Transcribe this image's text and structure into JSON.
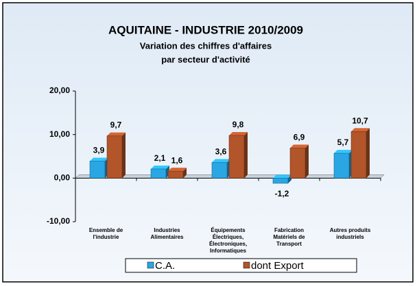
{
  "chart_data": {
    "type": "bar",
    "title": "AQUITAINE - INDUSTRIE 2010/2009",
    "subtitle": [
      "Variation des chiffres d'affaires",
      "par secteur d'activité"
    ],
    "categories": [
      "Ensemble de l'industrie",
      "Industries Alimentaires",
      "Équipements Électriques, Électroniques, Informatiques",
      "Fabrication Matériels de Transport",
      "Autres produits industriels"
    ],
    "series": [
      {
        "name": "C.A.",
        "color": "#2aa6e4",
        "values": [
          3.9,
          2.1,
          3.6,
          -1.2,
          5.7
        ],
        "value_labels": [
          "3,9",
          "2,1",
          "3,6",
          "-1,2",
          "5,7"
        ]
      },
      {
        "name": "dont Export",
        "color": "#b2552a",
        "values": [
          9.7,
          1.6,
          9.8,
          6.9,
          10.7
        ],
        "value_labels": [
          "9,7",
          "1,6",
          "9,8",
          "6,9",
          "10,7"
        ]
      }
    ],
    "ylim": [
      -10,
      20
    ],
    "yticks": [
      {
        "value": -10,
        "label": "-10,00"
      },
      {
        "value": 0,
        "label": "0,00"
      },
      {
        "value": 10,
        "label": "10,00"
      },
      {
        "value": 20,
        "label": "20,00"
      }
    ],
    "legend": "bottom"
  }
}
